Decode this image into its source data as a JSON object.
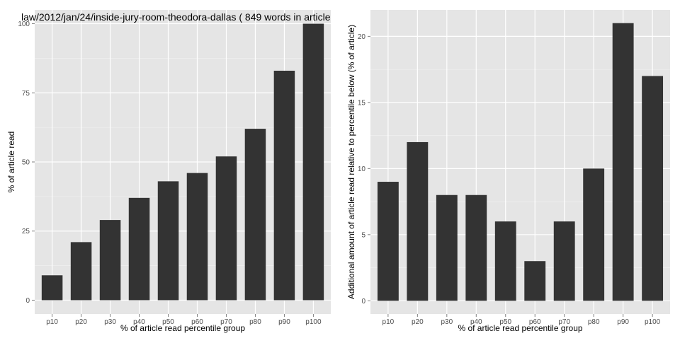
{
  "chart_data": [
    {
      "type": "bar",
      "title": "law/2012/jan/24/inside-jury-room-theodora-dallas ( 849 words in article",
      "xlabel": "% of article read percentile group",
      "ylabel": "% of article read",
      "categories": [
        "p10",
        "p20",
        "p30",
        "p40",
        "p50",
        "p60",
        "p70",
        "p80",
        "p90",
        "p100"
      ],
      "values": [
        9,
        21,
        29,
        37,
        43,
        46,
        52,
        62,
        83,
        100
      ],
      "ylim": [
        -5,
        105
      ],
      "yticks": [
        0,
        25,
        50,
        75,
        100
      ],
      "ytick_labels": [
        "0",
        "25",
        "50",
        "75",
        "100"
      ],
      "grid": true,
      "colors": {
        "bar": "#333333",
        "panel": "#e5e5e5",
        "grid": "#ffffff",
        "tick_text": "#4d4d4d",
        "axis_text": "#000000"
      }
    },
    {
      "type": "bar",
      "title": "",
      "xlabel": "% of article read percentile group",
      "ylabel": "Additional amount of article read relative to percentile below (% of article)",
      "categories": [
        "p10",
        "p20",
        "p30",
        "p40",
        "p50",
        "p60",
        "p70",
        "p80",
        "p90",
        "p100"
      ],
      "values": [
        9,
        12,
        8,
        8,
        6,
        3,
        6,
        10,
        21,
        17
      ],
      "ylim": [
        -1,
        22
      ],
      "yticks": [
        0,
        5,
        10,
        15,
        20
      ],
      "ytick_labels": [
        "0",
        "5",
        "10",
        "15",
        "20"
      ],
      "grid": true,
      "colors": {
        "bar": "#333333",
        "panel": "#e5e5e5",
        "grid": "#ffffff",
        "tick_text": "#4d4d4d",
        "axis_text": "#000000"
      }
    }
  ]
}
